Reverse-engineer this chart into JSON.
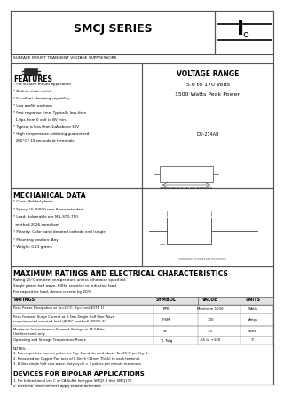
{
  "title": "SMCJ SERIES",
  "subtitle": "SURFACE MOUNT TRANSIENT VOLTAGE SUPPRESSORS",
  "voltage_range_title": "VOLTAGE RANGE",
  "voltage_range": "5.0 to 170 Volts",
  "peak_power": "1500 Watts Peak Power",
  "package": "DO-214AB",
  "features_title": "FEATURES",
  "features": [
    "* For surface mount application",
    "* Built-in strain relief",
    "* Excellent clamping capability",
    "* Low profile package",
    "* Fast response time: Typically less than",
    "  1.0ps from 0 volt to BV min.",
    "* Typical is less than 1uA above 10V",
    "* High temperature soldering guaranteed",
    "  260°C / 10 seconds at terminals"
  ],
  "mech_title": "MECHANICAL DATA",
  "mech": [
    "* Case: Molded plastic",
    "* Epoxy: UL 94V-0 rate flame retardant",
    "* Lead: Solderable per MIL-STD-750",
    "  method 2026 compliant",
    "* Polarity: Color band denoted cathode end (single)",
    "* Mounting position: Any",
    "* Weight: 0.21 grams"
  ],
  "max_title": "MAXIMUM RATINGS AND ELECTRICAL CHARACTERISTICS",
  "ratings_note1": "Rating 25°C ambient temperature unless otherwise specified.",
  "ratings_note2": "Single phase half wave, 60Hz, resistive or inductive load.",
  "ratings_note3": "For capacitive load, derate current by 20%.",
  "table_headers": [
    "RATINGS",
    "SYMBOL",
    "VALUE",
    "UNITS"
  ],
  "table_rows": [
    [
      "Peak Power Dissipation at Ta=25°C, Tp=1ms(NOTE 1)",
      "PPK",
      "Minimum 1500",
      "Watts"
    ],
    [
      "Peak Forward Surge Current at 8.3ms Single Half Sine-Wave\nsuperimposed on rated load (JEDEC method) (NOTE 3)",
      "IFSM",
      "100",
      "Amps"
    ],
    [
      "Maximum Instantaneous Forward Voltage at 35.5A for\nUnidirectional only",
      "VF",
      "3.5",
      "Volts"
    ],
    [
      "Operating and Storage Temperature Range",
      "TJ, Tstg",
      "-55 to +150",
      "°C"
    ]
  ],
  "notes_title": "NOTES:",
  "notes": [
    "1. Non-repetitive current pulse per Fig. 3 and derated above Ta=25°C per Fig. 2.",
    "2. Measured on Copper Pad area of 8.0inch (31mm Thick) to each terminal.",
    "3. 8.3ms single half sine-wave, duty cycle = 4 pulses per minute maximum."
  ],
  "bipolar_title": "DEVICES FOR BIPOLAR APPLICATIONS",
  "bipolar": [
    "1. For bidirectional use C or CA Suffix for types SMCJ5.0 thru SMCJ170.",
    "2. Electrical characteristics apply to both directions."
  ],
  "bg_color": "#ffffff",
  "border_color": "#555555",
  "text_color": "#000000"
}
